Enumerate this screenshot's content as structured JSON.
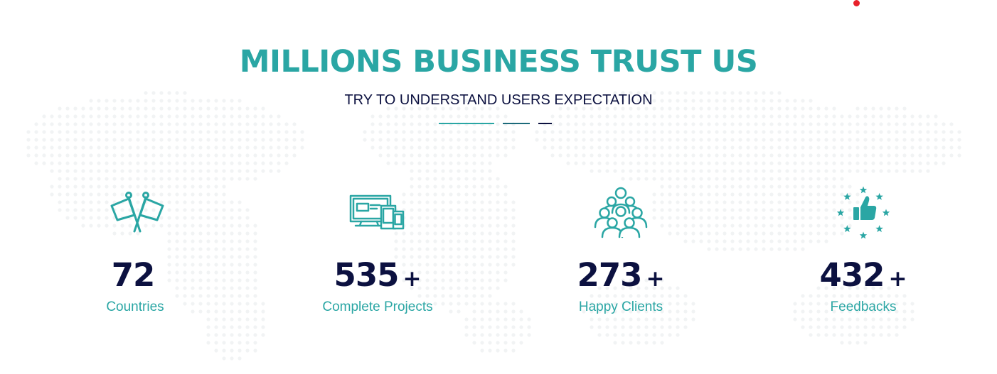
{
  "section": {
    "title": "MILLIONS BUSINESS TRUST US",
    "subtitle": "TRY TO UNDERSTAND USERS EXPECTATION"
  },
  "colors": {
    "accent": "#2aa6a4",
    "dark": "#0c1140",
    "red_dot": "#e8202a"
  },
  "stats": [
    {
      "icon": "crossed-flags-icon",
      "number": "72",
      "suffix": "",
      "label": "Countries"
    },
    {
      "icon": "devices-icon",
      "number": "535",
      "suffix": "+",
      "label": "Complete Projects"
    },
    {
      "icon": "group-people-icon",
      "number": "273",
      "suffix": "+",
      "label": "Happy Clients"
    },
    {
      "icon": "thumbs-up-stars-icon",
      "number": "432",
      "suffix": "+",
      "label": "Feedbacks"
    }
  ]
}
